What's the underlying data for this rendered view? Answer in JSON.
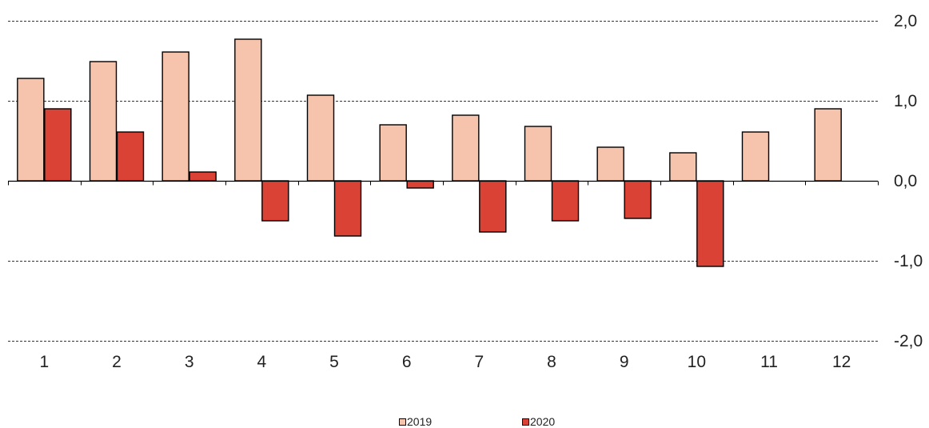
{
  "chart_data": {
    "type": "bar",
    "title": "",
    "xlabel": "",
    "ylabel": "",
    "categories": [
      "1",
      "2",
      "3",
      "4",
      "5",
      "6",
      "7",
      "8",
      "9",
      "10",
      "11",
      "12"
    ],
    "series": [
      {
        "name": "2019",
        "color": "#f6c3ad",
        "values": [
          1.28,
          1.49,
          1.61,
          1.77,
          1.07,
          0.7,
          0.82,
          0.68,
          0.42,
          0.35,
          0.61,
          0.9
        ]
      },
      {
        "name": "2020",
        "color": "#d94234",
        "values": [
          0.9,
          0.61,
          0.11,
          -0.5,
          -0.69,
          -0.09,
          -0.64,
          -0.5,
          -0.47,
          -1.07,
          null,
          null
        ]
      }
    ],
    "ylim": [
      -2.0,
      2.0
    ],
    "yticks": [
      2.0,
      1.0,
      0.0,
      -1.0,
      -2.0
    ],
    "ytick_labels": [
      "2,0",
      "1,0",
      "0,0",
      "-1,0",
      "-2,0"
    ],
    "y_axis_position": "right",
    "grid": "horizontal dashed",
    "legend_position": "bottom-center"
  }
}
